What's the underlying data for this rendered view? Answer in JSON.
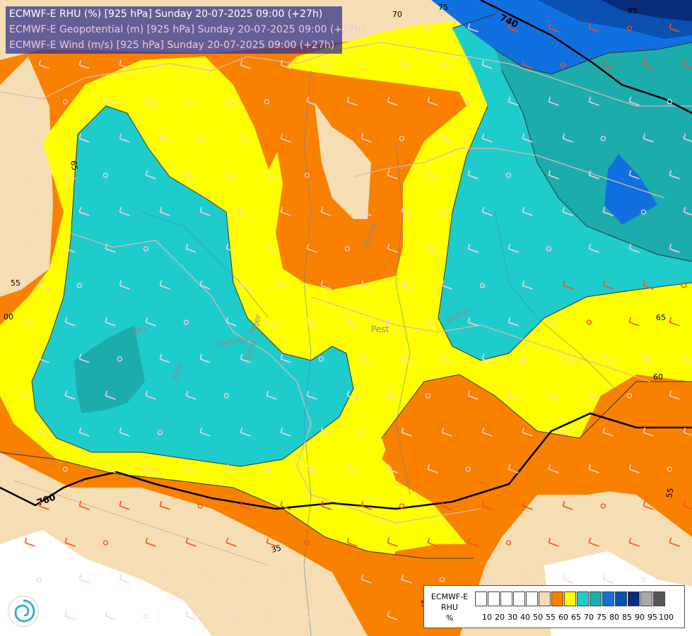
{
  "title": {
    "line1": "ECMWF-E RHU (%) [925 hPa] Sunday 20-07-2025 09:00 (+27h)",
    "line2": "ECMWF-E Geopotential (m) [925 hPa] Sunday 20-07-2025 09:00 (+27h)",
    "line3": "ECMWF-E Wind (m/s) [925 hPa] Sunday 20-07-2025 09:00 (+27h)"
  },
  "colors": {
    "rhu_55": "#f5deb3",
    "rhu_60": "#fa8000",
    "rhu_65": "#ffff00",
    "rhu_70": "#1ecccc",
    "rhu_75": "#1cacac",
    "rhu_80": "#1070e0",
    "rhu_85": "#0a50b0",
    "rhu_90": "#082c78"
  },
  "geopotential_labels": [
    "740",
    "760"
  ],
  "rhu_contour_labels": [
    "70",
    "75",
    "85",
    "65",
    "55",
    "00",
    "65",
    "60",
    "55",
    "35",
    "55"
  ],
  "place_labels": [
    "Pest",
    "Bekes",
    "Heves",
    "Zala",
    "Tolna",
    "Somogy",
    "Fejer",
    "Vas"
  ],
  "legend": {
    "title_line1": "ECMWF-E",
    "title_line2": "RHU",
    "unit": "%",
    "swatch_colors": [
      "#ffffff",
      "#ffffff",
      "#ffffff",
      "#ffffff",
      "#ffffff",
      "#f5deb3",
      "#fa8000",
      "#ffff00",
      "#1ecccc",
      "#1cacac",
      "#1070e0",
      "#0a50b0",
      "#082c78",
      "#aaaaaa",
      "#555555"
    ],
    "ticks": [
      "10",
      "20",
      "30",
      "40",
      "50",
      "55",
      "60",
      "65",
      "70",
      "75",
      "80",
      "85",
      "90",
      "95",
      "100"
    ]
  },
  "logo_icon": "ogimet-swirl-logo"
}
